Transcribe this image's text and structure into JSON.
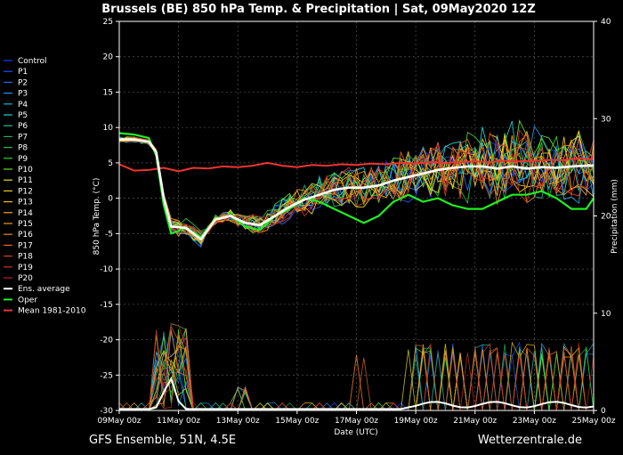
{
  "chart_data": {
    "type": "line",
    "title": "Brussels  (BE)  850 hPa Temp. & Precipitation | Sat, 09May2020 12Z",
    "ylabel_left": "850 hPa Temp. (°C)",
    "ylabel_right": "Precipitation (mm)",
    "xlabel": "Date (UTC)",
    "x_range_days": [
      0,
      16
    ],
    "x_ticks": [
      {
        "day": 0,
        "label": "09May 00z"
      },
      {
        "day": 2,
        "label": "11May 00z"
      },
      {
        "day": 4,
        "label": "13May 00z"
      },
      {
        "day": 6,
        "label": "15May 00z"
      },
      {
        "day": 8,
        "label": "17May 00z"
      },
      {
        "day": 10,
        "label": "19May 00z"
      },
      {
        "day": 12,
        "label": "21May 00z"
      },
      {
        "day": 14,
        "label": "23May 00z"
      },
      {
        "day": 16,
        "label": "25May 00z"
      }
    ],
    "ylim_left": [
      -30,
      25
    ],
    "y_ticks_left": [
      25,
      20,
      15,
      10,
      5,
      0,
      -5,
      -10,
      -15,
      -20,
      -25,
      -30
    ],
    "ylim_right": [
      0,
      40
    ],
    "y_ticks_right": [
      40,
      30,
      20,
      10,
      0
    ],
    "grid": true,
    "legend_position": "left",
    "series": [
      {
        "name": "Control",
        "color": "#2233ff"
      },
      {
        "name": "P1",
        "color": "#1f4fff"
      },
      {
        "name": "P2",
        "color": "#2266ee"
      },
      {
        "name": "P3",
        "color": "#2b8be8"
      },
      {
        "name": "P4",
        "color": "#22aadd"
      },
      {
        "name": "P5",
        "color": "#22cccc"
      },
      {
        "name": "P6",
        "color": "#22bb99"
      },
      {
        "name": "P7",
        "color": "#22aa66"
      },
      {
        "name": "P8",
        "color": "#22bb44"
      },
      {
        "name": "P9",
        "color": "#33cc33"
      },
      {
        "name": "P10",
        "color": "#66dd22"
      },
      {
        "name": "P11",
        "color": "#dddd22"
      },
      {
        "name": "P12",
        "color": "#eecc22"
      },
      {
        "name": "P13",
        "color": "#eebb22"
      },
      {
        "name": "P14",
        "color": "#eeaa22"
      },
      {
        "name": "P15",
        "color": "#ee9922"
      },
      {
        "name": "P16",
        "color": "#dd8822"
      },
      {
        "name": "P17",
        "color": "#dd6622"
      },
      {
        "name": "P18",
        "color": "#cc4422"
      },
      {
        "name": "P19",
        "color": "#cc3322"
      },
      {
        "name": "P20",
        "color": "#bb2222"
      },
      {
        "name": "Ens. average",
        "color": "#ffffff"
      },
      {
        "name": "Oper",
        "color": "#22ee22"
      },
      {
        "name": "Mean 1981-2010",
        "color": "#ee3333"
      }
    ],
    "ens_average": [
      [
        0,
        8.3
      ],
      [
        0.5,
        8.3
      ],
      [
        1,
        8.0
      ],
      [
        1.25,
        6.5
      ],
      [
        1.5,
        0
      ],
      [
        1.75,
        -4
      ],
      [
        2.25,
        -4.2
      ],
      [
        2.75,
        -5.8
      ],
      [
        3.25,
        -3
      ],
      [
        3.75,
        -2.5
      ],
      [
        4.25,
        -3.5
      ],
      [
        4.75,
        -3.8
      ],
      [
        5.25,
        -2.5
      ],
      [
        5.75,
        -1.2
      ],
      [
        6.25,
        -0.2
      ],
      [
        6.75,
        0.5
      ],
      [
        7.25,
        1.2
      ],
      [
        7.75,
        1.5
      ],
      [
        8.25,
        1.5
      ],
      [
        8.75,
        1.8
      ],
      [
        9.25,
        2.5
      ],
      [
        9.75,
        3
      ],
      [
        10.25,
        3.5
      ],
      [
        10.75,
        4
      ],
      [
        11.25,
        4.3
      ],
      [
        11.75,
        4.5
      ],
      [
        12.25,
        4.5
      ],
      [
        12.75,
        4.2
      ],
      [
        13.25,
        4.5
      ],
      [
        13.75,
        4.2
      ],
      [
        14.25,
        4.4
      ],
      [
        14.75,
        4.3
      ],
      [
        15.25,
        4.5
      ],
      [
        15.75,
        4.6
      ],
      [
        16,
        4.6
      ]
    ],
    "oper": [
      [
        0,
        9.2
      ],
      [
        0.5,
        9.0
      ],
      [
        1,
        8.5
      ],
      [
        1.25,
        6
      ],
      [
        1.5,
        -1
      ],
      [
        1.75,
        -5
      ],
      [
        2.25,
        -4.2
      ],
      [
        2.75,
        -5.5
      ],
      [
        3.25,
        -3
      ],
      [
        3.75,
        -2.5
      ],
      [
        4.25,
        -4
      ],
      [
        4.75,
        -4.5
      ],
      [
        5.25,
        -2.5
      ],
      [
        5.75,
        -1.5
      ],
      [
        6.25,
        0
      ],
      [
        6.75,
        -0.5
      ],
      [
        7.25,
        -1.5
      ],
      [
        7.75,
        -2.5
      ],
      [
        8.25,
        -3.5
      ],
      [
        8.75,
        -2.5
      ],
      [
        9.25,
        -0.5
      ],
      [
        9.75,
        0.5
      ],
      [
        10.25,
        -0.5
      ],
      [
        10.75,
        0
      ],
      [
        11.25,
        -1
      ],
      [
        11.75,
        -1.5
      ],
      [
        12.25,
        -1.5
      ],
      [
        12.75,
        -0.5
      ],
      [
        13.25,
        0.5
      ],
      [
        13.75,
        0.5
      ],
      [
        14.25,
        1
      ],
      [
        14.75,
        0
      ],
      [
        15.25,
        -1.5
      ],
      [
        15.75,
        -1.5
      ],
      [
        16,
        0
      ]
    ],
    "mean_1981_2010": [
      [
        0,
        4.8
      ],
      [
        0.5,
        3.9
      ],
      [
        1,
        4.0
      ],
      [
        1.5,
        4.3
      ],
      [
        2,
        3.8
      ],
      [
        2.5,
        4.3
      ],
      [
        3,
        4.2
      ],
      [
        3.5,
        4.5
      ],
      [
        4,
        4.4
      ],
      [
        4.5,
        4.6
      ],
      [
        5,
        5.0
      ],
      [
        5.5,
        4.6
      ],
      [
        6,
        4.4
      ],
      [
        6.5,
        4.7
      ],
      [
        7,
        4.6
      ],
      [
        7.5,
        4.8
      ],
      [
        8,
        4.7
      ],
      [
        8.5,
        4.9
      ],
      [
        9,
        4.8
      ],
      [
        9.5,
        5.0
      ],
      [
        10,
        4.9
      ],
      [
        10.5,
        5.1
      ],
      [
        11,
        5.0
      ],
      [
        11.5,
        5.1
      ],
      [
        12,
        5.2
      ],
      [
        12.5,
        5.1
      ],
      [
        13,
        5.3
      ],
      [
        13.5,
        5.2
      ],
      [
        14,
        5.3
      ],
      [
        14.5,
        5.4
      ],
      [
        15,
        5.4
      ],
      [
        15.5,
        5.6
      ],
      [
        16,
        5.5
      ]
    ]
  },
  "footer": {
    "left": "GFS Ensemble, 51N, 4.5E",
    "right": "Wetterzentrale.de"
  }
}
